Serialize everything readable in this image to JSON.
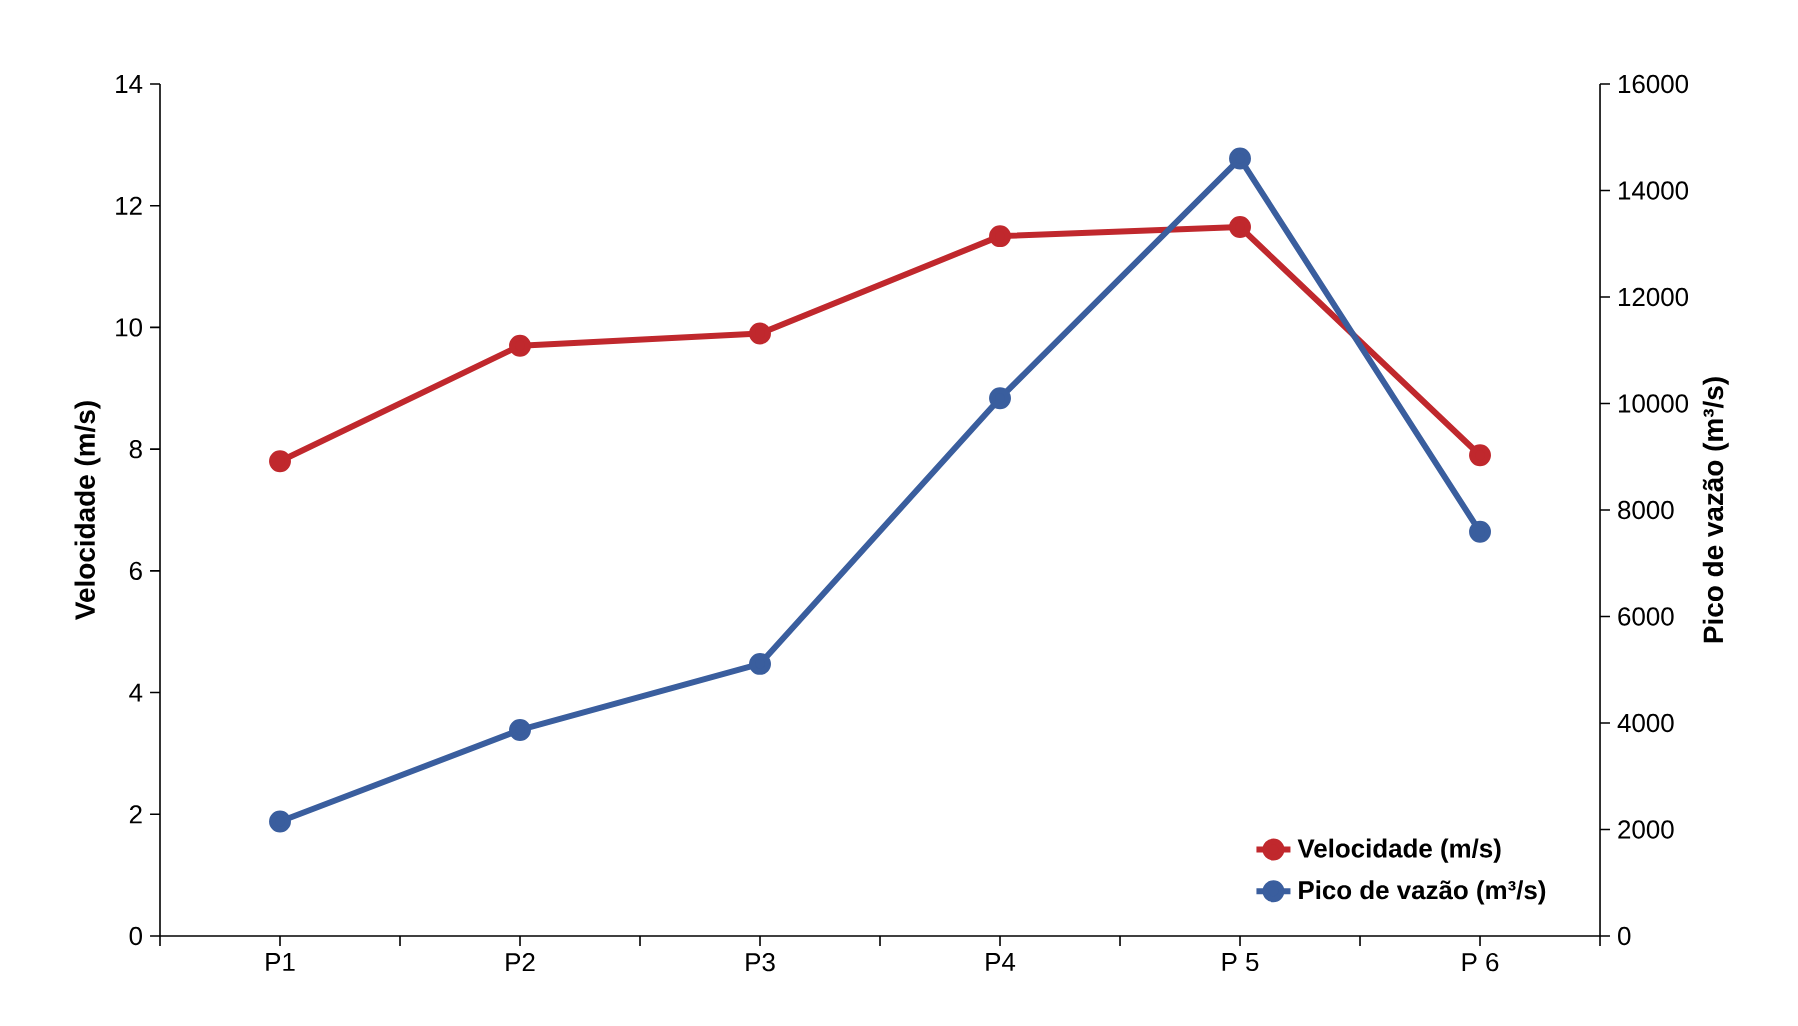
{
  "chart_data": {
    "type": "line",
    "categories": [
      "P1",
      "P2",
      "P3",
      "P4",
      "P 5",
      "P 6"
    ],
    "ylabel": "Velocidade (m/s)",
    "y2label": "Pico de vazão (m³/s)",
    "ylim": [
      0,
      14
    ],
    "yticks": [
      0,
      2,
      4,
      6,
      8,
      10,
      12,
      14
    ],
    "y2lim": [
      0,
      16000
    ],
    "y2ticks": [
      0,
      2000,
      4000,
      6000,
      8000,
      10000,
      12000,
      14000,
      16000
    ],
    "marker": "circle",
    "line_style": "solid",
    "legend": "bottom right",
    "grid": false,
    "series": [
      {
        "name": "Velocidade (m/s)",
        "color": "#c0282d",
        "values": [
          7.8,
          9.7,
          9.9,
          11.5,
          11.65,
          7.9
        ]
      },
      {
        "name": "Pico de vazão (m³/s)",
        "color": "#3a5e9e",
        "axis": "y2",
        "values": [
          2150,
          3870,
          5110,
          10100,
          14600,
          7590
        ]
      }
    ]
  }
}
